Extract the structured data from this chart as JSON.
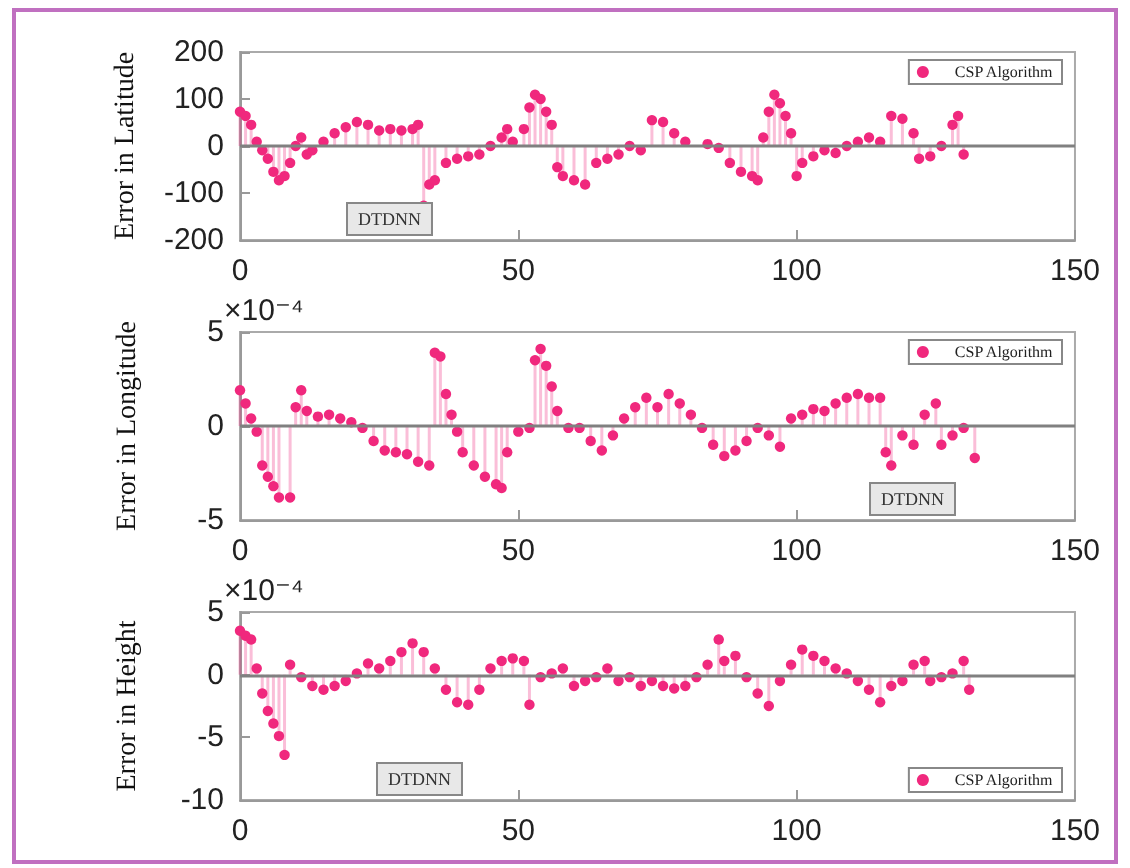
{
  "chart_data": [
    {
      "type": "lollipop",
      "ylabel": "Error in Latitude",
      "legend": "top right",
      "marker": "circle",
      "xlim": [
        0,
        150
      ],
      "xticks": [
        0,
        50,
        100,
        150
      ],
      "ylim": [
        -200,
        200
      ],
      "yticks": [
        -200,
        -100,
        0,
        100,
        200
      ],
      "ref_lines": [
        {
          "axis": "y",
          "value": 0,
          "color": "#808080"
        }
      ],
      "annotations": [
        "DTDNN"
      ],
      "series": [
        {
          "name": "CSP Algorithm",
          "color": "#f0287d",
          "x": [
            0,
            1,
            2,
            3,
            4,
            5,
            6,
            7,
            8,
            9,
            10,
            11,
            12,
            13,
            15,
            17,
            19,
            21,
            23,
            25,
            27,
            29,
            31,
            32,
            33,
            34,
            35,
            37,
            39,
            41,
            43,
            45,
            47,
            48,
            49,
            51,
            52,
            53,
            54,
            55,
            56,
            57,
            58,
            60,
            62,
            64,
            66,
            68,
            70,
            72,
            74,
            76,
            78,
            80,
            84,
            86,
            88,
            90,
            92,
            93,
            94,
            95,
            96,
            97,
            98,
            99,
            100,
            101,
            103,
            105,
            107,
            109,
            111,
            113,
            115,
            117,
            119,
            121,
            122,
            124,
            126,
            128,
            129,
            130
          ],
          "values": [
            73,
            64,
            45,
            9,
            -9,
            -27,
            -55,
            -73,
            -64,
            -36,
            0,
            18,
            -18,
            -9,
            9,
            27,
            40,
            51,
            45,
            33,
            36,
            33,
            36,
            45,
            -127,
            -82,
            -73,
            -36,
            -27,
            -22,
            -18,
            0,
            18,
            36,
            9,
            36,
            82,
            109,
            100,
            73,
            45,
            -45,
            -64,
            -73,
            -82,
            -36,
            -27,
            -18,
            0,
            -9,
            55,
            51,
            27,
            9,
            4,
            -4,
            -36,
            -55,
            -64,
            -73,
            18,
            73,
            109,
            91,
            64,
            27,
            -64,
            -36,
            -22,
            -9,
            -15,
            0,
            9,
            18,
            9,
            64,
            58,
            27,
            -27,
            -22,
            0,
            45,
            64,
            -18
          ]
        }
      ]
    },
    {
      "type": "lollipop",
      "ylabel": "Error in Longitude",
      "legend": "top right",
      "marker": "circle",
      "xlim": [
        0,
        150
      ],
      "xticks": [
        0,
        50,
        100,
        150
      ],
      "ylim": [
        -5,
        5
      ],
      "yticks": [
        -5,
        0,
        5
      ],
      "ref_lines": [
        {
          "axis": "y",
          "value": 0,
          "color": "#808080"
        }
      ],
      "annotations": [
        "DTDNN",
        "×10⁻⁴"
      ],
      "series": [
        {
          "name": "CSP Algorithm",
          "color": "#f0287d",
          "x": [
            0,
            1,
            2,
            3,
            4,
            5,
            6,
            7,
            9,
            10,
            11,
            12,
            14,
            16,
            18,
            20,
            22,
            24,
            26,
            28,
            30,
            32,
            34,
            35,
            36,
            37,
            38,
            39,
            40,
            42,
            44,
            46,
            47,
            48,
            50,
            52,
            53,
            54,
            55,
            56,
            57,
            59,
            61,
            63,
            65,
            67,
            69,
            71,
            73,
            75,
            77,
            79,
            81,
            83,
            85,
            87,
            89,
            91,
            93,
            95,
            97,
            99,
            101,
            103,
            105,
            107,
            109,
            111,
            113,
            115,
            116,
            117,
            119,
            121,
            123,
            125,
            126,
            128,
            130,
            132
          ],
          "values": [
            1.9,
            1.2,
            0.4,
            -0.3,
            -2.1,
            -2.7,
            -3.2,
            -3.8,
            -3.8,
            1.0,
            1.9,
            0.8,
            0.5,
            0.6,
            0.4,
            0.2,
            -0.1,
            -0.8,
            -1.3,
            -1.4,
            -1.5,
            -1.9,
            -2.1,
            3.9,
            3.7,
            1.7,
            0.6,
            -0.3,
            -1.4,
            -2.1,
            -2.7,
            -3.1,
            -3.3,
            -1.4,
            -0.3,
            -0.1,
            3.5,
            4.1,
            3.2,
            2.1,
            0.8,
            -0.1,
            -0.1,
            -0.8,
            -1.3,
            -0.5,
            0.4,
            1.0,
            1.5,
            1.0,
            1.7,
            1.2,
            0.6,
            -0.1,
            -1.0,
            -1.6,
            -1.3,
            -0.8,
            -0.1,
            -0.5,
            -1.1,
            0.4,
            0.6,
            0.9,
            0.8,
            1.2,
            1.5,
            1.7,
            1.5,
            1.5,
            -1.4,
            -2.1,
            -0.5,
            -1.0,
            0.6,
            1.2,
            -1.0,
            -0.5,
            -0.1,
            -1.7
          ]
        }
      ]
    },
    {
      "type": "lollipop",
      "ylabel": "Error in Height",
      "legend": "bottom right",
      "marker": "circle",
      "xlim": [
        0,
        150
      ],
      "xticks": [
        0,
        50,
        100,
        150
      ],
      "ylim": [
        -10,
        5
      ],
      "yticks": [
        -10,
        -5,
        0,
        5
      ],
      "ref_lines": [
        {
          "axis": "y",
          "value": 0,
          "color": "#808080"
        }
      ],
      "annotations": [
        "DTDNN",
        "×10⁻⁴"
      ],
      "series": [
        {
          "name": "CSP Algorithm",
          "color": "#f0287d",
          "x": [
            0,
            1,
            2,
            3,
            4,
            5,
            6,
            7,
            8,
            9,
            11,
            13,
            15,
            17,
            19,
            21,
            23,
            25,
            27,
            29,
            31,
            33,
            35,
            37,
            39,
            41,
            43,
            45,
            47,
            49,
            51,
            52,
            54,
            56,
            58,
            60,
            62,
            64,
            66,
            68,
            70,
            72,
            74,
            76,
            78,
            80,
            82,
            84,
            86,
            87,
            89,
            91,
            93,
            95,
            97,
            99,
            101,
            103,
            105,
            107,
            109,
            111,
            113,
            115,
            117,
            119,
            121,
            123,
            124,
            126,
            128,
            130,
            131
          ],
          "values": [
            3.5,
            3.1,
            2.8,
            0.5,
            -1.5,
            -2.9,
            -3.9,
            -4.9,
            -6.4,
            0.8,
            -0.2,
            -0.9,
            -1.2,
            -0.9,
            -0.5,
            0.1,
            0.9,
            0.5,
            1.1,
            1.8,
            2.5,
            1.8,
            0.5,
            -1.2,
            -2.2,
            -2.4,
            -1.2,
            0.5,
            1.1,
            1.3,
            1.1,
            -2.4,
            -0.2,
            0.1,
            0.5,
            -0.9,
            -0.5,
            -0.2,
            0.5,
            -0.5,
            -0.2,
            -0.9,
            -0.5,
            -0.9,
            -1.1,
            -0.9,
            -0.2,
            0.8,
            2.8,
            1.1,
            1.5,
            -0.2,
            -1.5,
            -2.5,
            -0.5,
            0.8,
            2.0,
            1.5,
            1.1,
            0.5,
            0.1,
            -0.5,
            -1.2,
            -2.2,
            -0.9,
            -0.5,
            0.8,
            1.1,
            -0.5,
            -0.2,
            0.1,
            1.1,
            -1.2
          ]
        }
      ]
    }
  ]
}
